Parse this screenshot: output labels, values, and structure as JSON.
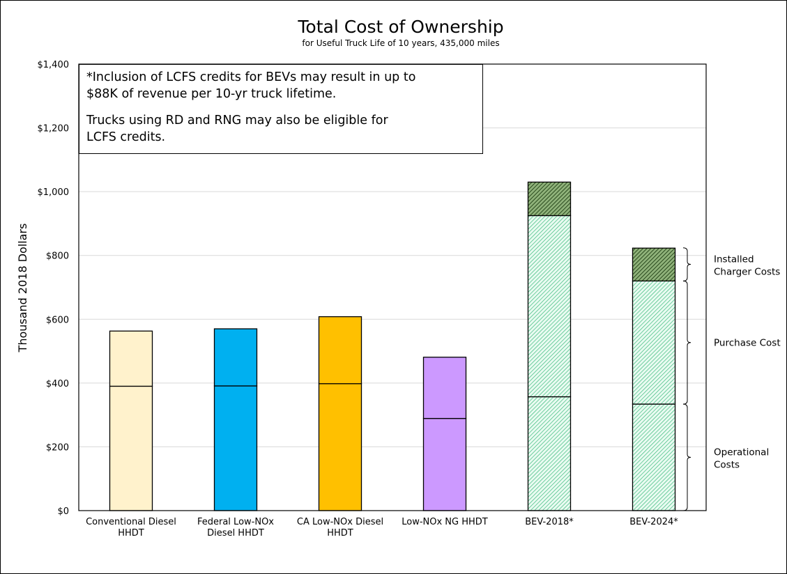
{
  "chart_data": {
    "type": "bar",
    "stacked": true,
    "title": "Total Cost of Ownership",
    "subtitle": "for Useful Truck Life of 10 years, 435,000 miles",
    "ylabel": "Thousand 2018 Dollars",
    "xlabel": "",
    "ylim": [
      0,
      1400
    ],
    "yticks": [
      "$0",
      "$200",
      "$400",
      "$600",
      "$800",
      "$1,000",
      "$1,200",
      "$1,400"
    ],
    "grid": true,
    "categories": [
      {
        "line1": "Conventional Diesel",
        "line2": "HHDT"
      },
      {
        "line1": "Federal Low-NOx",
        "line2": "Diesel HHDT"
      },
      {
        "line1": "CA Low-NOx Diesel",
        "line2": "HHDT"
      },
      {
        "line1": "Low-NOx NG HHDT",
        "line2": ""
      },
      {
        "line1": "BEV-2018*",
        "line2": ""
      },
      {
        "line1": "BEV-2024*",
        "line2": ""
      }
    ],
    "series": [
      {
        "values": [
          390,
          391,
          398,
          289,
          357,
          334
        ]
      },
      {
        "values": [
          173,
          179,
          210,
          192,
          568,
          386
        ]
      },
      {
        "values": [
          0,
          0,
          0,
          0,
          105,
          103
        ]
      }
    ],
    "bar_colors": [
      "#fff2cc",
      "#00b0f0",
      "#ffc000",
      "#cc99ff",
      "#ccf5e1",
      "#ccf5e1"
    ],
    "hatch_colors": [
      "",
      "",
      "",
      "",
      "#2fb574",
      "#2fb574"
    ],
    "charger_color": "#2e5c1f",
    "braces": [
      {
        "label1": "Installed",
        "label2": "Charger Costs",
        "from": 720,
        "to": 824
      },
      {
        "label1": "Purchase Cost",
        "label2": "",
        "from": 334,
        "to": 720
      },
      {
        "label1": "Operational",
        "label2": "Costs",
        "from": 0,
        "to": 334
      }
    ]
  },
  "note": {
    "line1": "*Inclusion of LCFS credits for BEVs may result in up to",
    "line2": "$88K of revenue per 10-yr truck lifetime.",
    "line3": "Trucks using RD and RNG may also be eligible for",
    "line4": "LCFS credits."
  }
}
